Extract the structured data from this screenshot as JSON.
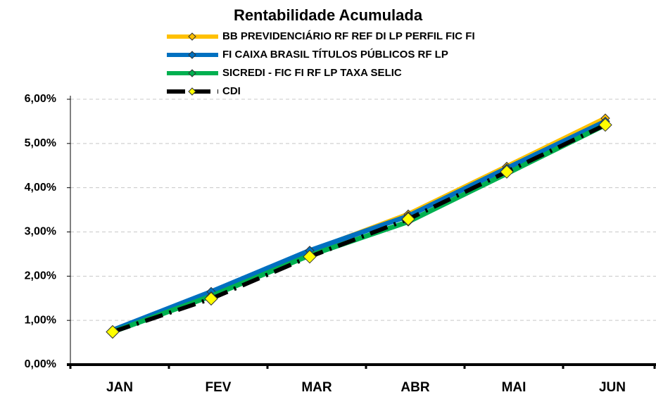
{
  "chart_data": {
    "type": "line",
    "title": "Rentabilidade Acumulada",
    "categories": [
      "JAN",
      "FEV",
      "MAR",
      "ABR",
      "MAI",
      "JUN"
    ],
    "series": [
      {
        "name": "BB PREVIDENCIÁRIO RF REF DI LP PERFIL FIC FI",
        "color": "#FFC000",
        "marker_color": "#FFC000",
        "values": [
          0.76,
          1.62,
          2.56,
          3.4,
          4.48,
          5.57
        ]
      },
      {
        "name": "FI CAIXA BRASIL TÍTULOS PÚBLICOS RF LP",
        "color": "#0070C0",
        "marker_color": "#0070C0",
        "values": [
          0.78,
          1.65,
          2.58,
          3.36,
          4.44,
          5.5
        ]
      },
      {
        "name": "SICREDI - FIC FI RF LP TAXA SELIC",
        "color": "#00B050",
        "marker_color": "#00B050",
        "values": [
          0.74,
          1.55,
          2.47,
          3.23,
          4.32,
          5.42
        ]
      },
      {
        "name": "CDI",
        "color": "#000000",
        "marker_color": "#FFFF00",
        "dashed": true,
        "values": [
          0.74,
          1.49,
          2.44,
          3.29,
          4.36,
          5.42
        ]
      }
    ],
    "ylim": [
      0,
      6
    ],
    "yticks": [
      {
        "value": 0,
        "label": "0,00%"
      },
      {
        "value": 1,
        "label": "1,00%"
      },
      {
        "value": 2,
        "label": "2,00%"
      },
      {
        "value": 3,
        "label": "3,00%"
      },
      {
        "value": 4,
        "label": "4,00%"
      },
      {
        "value": 5,
        "label": "5,00%"
      },
      {
        "value": 6,
        "label": "6,00%"
      }
    ],
    "grid": true
  }
}
